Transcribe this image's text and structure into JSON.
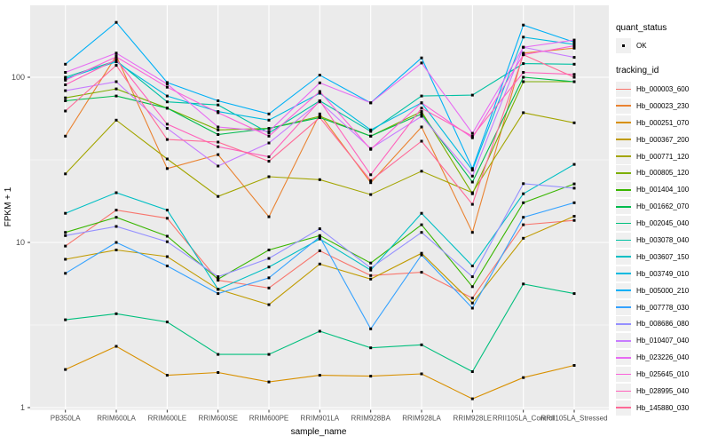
{
  "figure": {
    "background": "#FFFFFF",
    "panel_bg": "#EBEBEB",
    "grid_major_color": "#FFFFFF",
    "grid_minor_color": "#FFFFFF",
    "tick_mark_color": "#333333",
    "tick_label_color": "#4D4D4D",
    "axis_title_color": "#000000",
    "point_color": "#000000"
  },
  "chart_data": {
    "type": "line",
    "xlabel": "sample_name",
    "ylabel": "FPKM + 1",
    "y_scale": "log10",
    "y_ticks": [
      1,
      10,
      100
    ],
    "y_minor_breaks": [
      3.162,
      31.623
    ],
    "ylim": [
      1,
      270
    ],
    "grid": true,
    "legend_position": "right",
    "point_shape": "small-black-square",
    "categories": [
      "PB350LA",
      "RRIM600LA",
      "RRIM600LE",
      "RRIM600SE",
      "RRIM600PE",
      "RRIM901LA",
      "RRIM928BA",
      "RRIM928LA",
      "RRIM928LE",
      "RRII105LA_Control",
      "RRII105LA_Stressed"
    ],
    "series": [
      {
        "name": "Hb_000003_600",
        "color": "#F8766D",
        "values": [
          9.5,
          15.7,
          14,
          5.9,
          5.3,
          8.9,
          6.3,
          6.6,
          4.6,
          12.8,
          13.6
        ]
      },
      {
        "name": "Hb_000023_230",
        "color": "#EA8331",
        "values": [
          44,
          135,
          28,
          34,
          14.3,
          60,
          23,
          50,
          11.5,
          140,
          150
        ]
      },
      {
        "name": "Hb_000251_070",
        "color": "#D89000",
        "values": [
          1.7,
          2.35,
          1.57,
          1.63,
          1.43,
          1.57,
          1.55,
          1.6,
          1.13,
          1.52,
          1.8
        ]
      },
      {
        "name": "Hb_000367_200",
        "color": "#C09B00",
        "values": [
          7.9,
          9.0,
          8.2,
          5.2,
          4.2,
          7.4,
          6.0,
          8.6,
          4.3,
          10.6,
          14.4
        ]
      },
      {
        "name": "Hb_000771_120",
        "color": "#A3A500",
        "values": [
          26,
          55,
          32,
          19,
          25,
          24,
          19.5,
          27,
          20,
          61,
          53
        ]
      },
      {
        "name": "Hb_000805_120",
        "color": "#7CAE00",
        "values": [
          75,
          85,
          65,
          48,
          49,
          58,
          44,
          62,
          19.7,
          94,
          94
        ]
      },
      {
        "name": "Hb_001404_100",
        "color": "#39B600",
        "values": [
          11.5,
          14.2,
          10.9,
          6.0,
          9.0,
          11.0,
          7.5,
          12.8,
          5.4,
          17.4,
          22.6
        ]
      },
      {
        "name": "Hb_001662_070",
        "color": "#00BB4E",
        "values": [
          72,
          77,
          65,
          45,
          49,
          57,
          44,
          60,
          23.2,
          100,
          94
        ]
      },
      {
        "name": "Hb_002045_040",
        "color": "#00BF7D",
        "values": [
          3.4,
          3.7,
          3.3,
          2.1,
          2.1,
          2.9,
          2.3,
          2.4,
          1.65,
          5.6,
          4.9
        ]
      },
      {
        "name": "Hb_003078_040",
        "color": "#00C1A3",
        "values": [
          100,
          126,
          71,
          68,
          46,
          72,
          47,
          77,
          78,
          121,
          120
        ]
      },
      {
        "name": "Hb_003607_150",
        "color": "#00BFC4",
        "values": [
          15,
          20,
          15.7,
          5.2,
          7.1,
          10.5,
          6.8,
          15.0,
          7.2,
          19.7,
          29.7
        ]
      },
      {
        "name": "Hb_003749_010",
        "color": "#00BAE0",
        "values": [
          98,
          124,
          77,
          62,
          55,
          80,
          48,
          70,
          27.4,
          175,
          158
        ]
      },
      {
        "name": "Hb_005000_210",
        "color": "#00B0F6",
        "values": [
          120,
          215,
          93,
          72,
          60,
          103,
          70,
          131,
          28,
          207,
          163
        ]
      },
      {
        "name": "Hb_007778_030",
        "color": "#35A2FF",
        "values": [
          6.5,
          10,
          7.2,
          4.9,
          6.1,
          10.8,
          3.0,
          8.4,
          4.0,
          14.2,
          17.4
        ]
      },
      {
        "name": "Hb_008686_080",
        "color": "#9590FF",
        "values": [
          11.0,
          12.5,
          10.1,
          6.2,
          8.0,
          12.1,
          7.0,
          11.5,
          6.2,
          22.7,
          21.3
        ]
      },
      {
        "name": "Hb_010407_040",
        "color": "#C77CFF",
        "values": [
          83,
          94,
          49,
          29,
          40,
          71,
          37,
          58,
          25.2,
          152,
          132
        ]
      },
      {
        "name": "Hb_023226_040",
        "color": "#E76BF3",
        "values": [
          107,
          140,
          91,
          50,
          47,
          92.5,
          70,
          122,
          45.8,
          152,
          168
        ]
      },
      {
        "name": "Hb_025645_010",
        "color": "#FA62DB",
        "values": [
          96,
          133,
          87,
          61,
          44,
          82,
          36.6,
          70,
          43,
          137,
          155
        ]
      },
      {
        "name": "Hb_028995_040",
        "color": "#FF62BC",
        "values": [
          90,
          128,
          52,
          38,
          33,
          72,
          25.7,
          65,
          44,
          107,
          104
        ]
      },
      {
        "name": "Hb_145880_030",
        "color": "#FF6A98",
        "values": [
          62.5,
          118,
          42,
          40.5,
          31,
          57,
          23.7,
          41,
          17,
          137,
          100
        ]
      }
    ],
    "legend": {
      "quant_status_title": "quant_status",
      "ok_label": "OK",
      "tracking_id_title": "tracking_id"
    }
  }
}
